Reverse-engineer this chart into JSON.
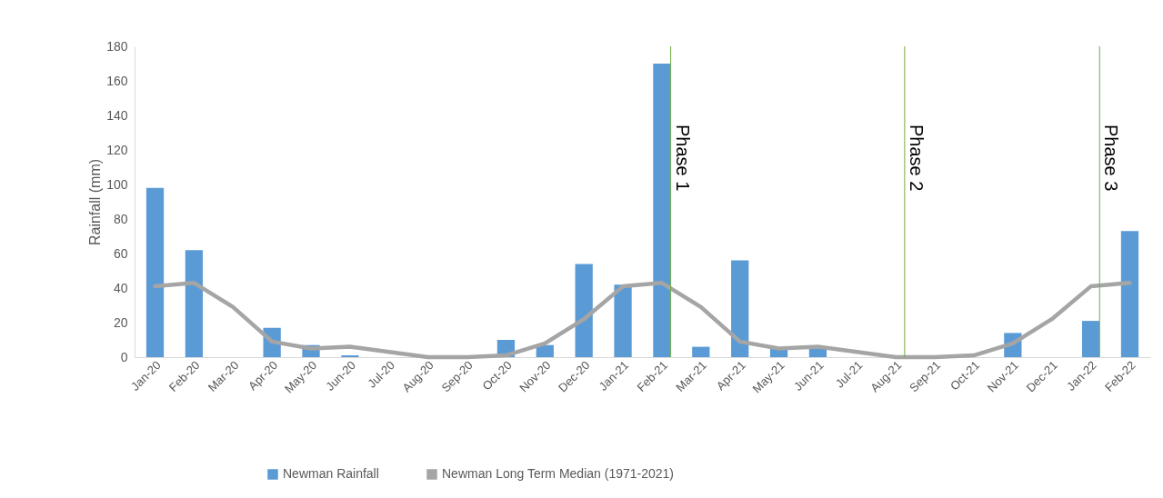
{
  "chart_data": {
    "type": "bar",
    "ylabel": "Rainfall (mm)",
    "categories": [
      "Jan-20",
      "Feb-20",
      "Mar-20",
      "Apr-20",
      "May-20",
      "Jun-20",
      "Jul-20",
      "Aug-20",
      "Sep-20",
      "Oct-20",
      "Nov-20",
      "Dec-20",
      "Jan-21",
      "Feb-21",
      "Mar-21",
      "Apr-21",
      "May-21",
      "Jun-21",
      "Jul-21",
      "Aug-21",
      "Sep-21",
      "Oct-21",
      "Nov-21",
      "Dec-21",
      "Jan-22",
      "Feb-22"
    ],
    "series": [
      {
        "name": "Newman Rainfall",
        "color": "#5b9bd5",
        "values": [
          98,
          62,
          0,
          17,
          7,
          1,
          0,
          0,
          0,
          10,
          7,
          54,
          42,
          170,
          6,
          56,
          5,
          5,
          0,
          0,
          0,
          0,
          14,
          0,
          21,
          73
        ]
      },
      {
        "name": "Newman Long Term Median (1971-2021)",
        "type": "line",
        "color": "#a5a5a5",
        "values": [
          41,
          43,
          29,
          9,
          5,
          6,
          3,
          0,
          0,
          1,
          8,
          22,
          41,
          43,
          29,
          9,
          5,
          6,
          3,
          0,
          0,
          1,
          8,
          22,
          41,
          43
        ]
      }
    ],
    "ylim": [
      0,
      180
    ],
    "yticks": [
      0,
      20,
      40,
      60,
      80,
      100,
      120,
      140,
      160,
      180
    ],
    "grid": false,
    "legend": "bottom",
    "marker": "none",
    "line_style": "solid",
    "ref_lines": [
      {
        "axis": "x",
        "value": "Feb-21",
        "label": "Phase 1",
        "color": "#70ad47"
      },
      {
        "axis": "x",
        "value": "Aug-21",
        "label": "Phase 2",
        "color": "#70ad47"
      },
      {
        "axis": "x",
        "value": "Jan-22",
        "label": "Phase 3",
        "color": "#70ad47"
      }
    ]
  }
}
